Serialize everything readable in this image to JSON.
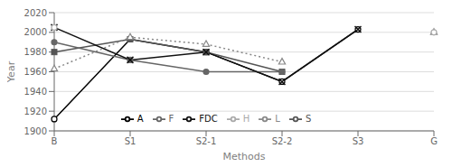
{
  "chart_data": {
    "type": "line",
    "xlabel": "Methods",
    "ylabel": "Year",
    "categories": [
      "B",
      "S1",
      "S2-1",
      "S2-2",
      "S3",
      "G"
    ],
    "series": [
      {
        "name": "A",
        "color": "#000000",
        "marker": "open_circle",
        "line_style": "solid",
        "values": [
          1912,
          1993,
          1980,
          1950,
          2003,
          null
        ]
      },
      {
        "name": "S",
        "color": "#555555",
        "marker": "square",
        "line_style": "solid",
        "values": [
          1980,
          1993,
          1980,
          1960,
          null,
          null
        ]
      },
      {
        "name": "L",
        "color": "#888888",
        "marker": "open_triangle",
        "line_style": "dotted",
        "values": [
          1963,
          1995,
          1988,
          1970,
          null,
          2000
        ]
      },
      {
        "name": "F",
        "color": "#666666",
        "marker": "circle",
        "line_style": "solid",
        "values": [
          1990,
          1972,
          1960,
          1960,
          null,
          null
        ]
      },
      {
        "name": "FDC",
        "color": "#111111",
        "marker": "x",
        "line_style": "solid",
        "values": [
          2005,
          1972,
          1980,
          1950,
          2003,
          null
        ]
      },
      {
        "name": "H",
        "color": "#aaaaaa",
        "marker": "open_circle",
        "line_style": "solid",
        "values": [
          2005,
          null,
          null,
          null,
          null,
          2000
        ]
      }
    ],
    "ylim": [
      1900,
      2020
    ],
    "yticks": [
      1900,
      1920,
      1940,
      1960,
      1980,
      2000,
      2020
    ],
    "grid": true,
    "legend": "lower center"
  }
}
